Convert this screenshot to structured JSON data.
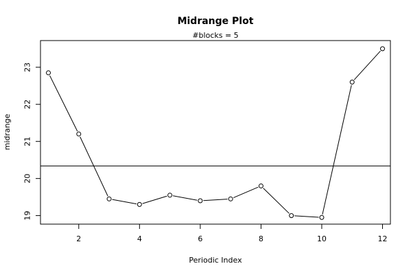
{
  "chart_data": {
    "type": "line",
    "title": "Midrange Plot",
    "subtitle": "#blocks =  5",
    "xlabel": "Periodic Index",
    "ylabel": "midrange",
    "xlim": [
      0.74,
      12.26
    ],
    "ylim": [
      18.77,
      23.72
    ],
    "xticks": [
      2,
      4,
      6,
      8,
      10,
      12
    ],
    "yticks": [
      19,
      20,
      21,
      22,
      23
    ],
    "x": [
      1,
      2,
      3,
      4,
      5,
      6,
      7,
      8,
      9,
      10,
      11,
      12
    ],
    "series": [
      {
        "values": [
          22.85,
          21.2,
          19.45,
          19.3,
          19.55,
          19.4,
          19.45,
          19.8,
          19.0,
          18.95,
          22.6,
          23.5
        ]
      }
    ],
    "reference_line": {
      "value": 20.34
    },
    "grid": false,
    "legend": "none"
  }
}
